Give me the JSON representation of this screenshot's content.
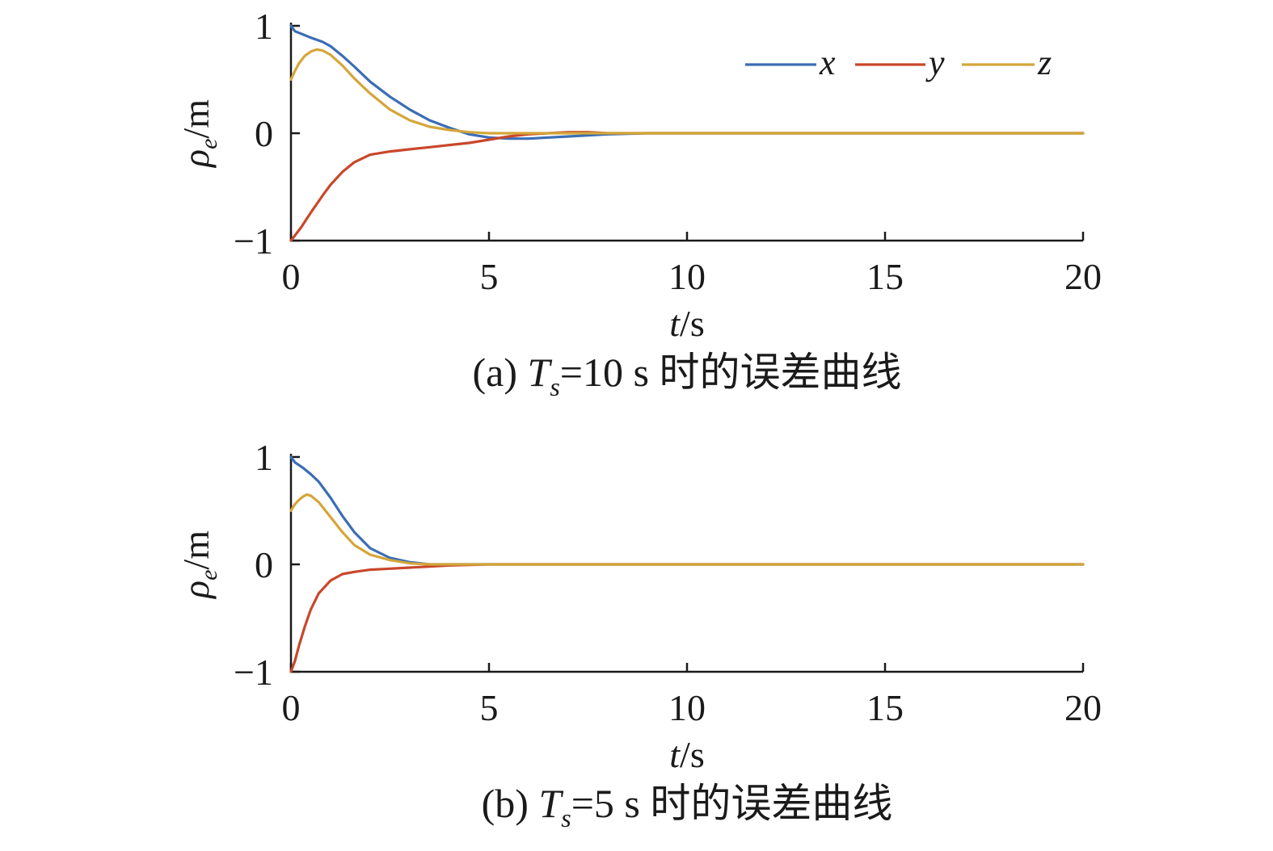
{
  "chart_data": [
    {
      "type": "line",
      "panel_label": "(a)",
      "caption": {
        "prefix": "(a) ",
        "var_main": "T",
        "var_sub": "s",
        "suffix": "=10 s 时的误差曲线"
      },
      "xlabel": {
        "italic": "t",
        "rest": "/s"
      },
      "ylabel": {
        "main": "ρ",
        "sub": "e",
        "rest": "/m"
      },
      "xlim": [
        0,
        20
      ],
      "ylim": [
        -1,
        1
      ],
      "xticks": [
        0,
        5,
        10,
        15,
        20
      ],
      "xtick_labels": [
        "0",
        "5",
        "10",
        "15",
        "20"
      ],
      "yticks": [
        -1,
        0,
        1
      ],
      "ytick_labels": [
        "−1",
        "0",
        "1"
      ],
      "grid": false,
      "legend": {
        "placement": "top-right",
        "show": true
      },
      "series": [
        {
          "name": "x",
          "color": "#3b6db5",
          "x": [
            0,
            0.1,
            0.3,
            0.5,
            0.8,
            1.0,
            1.3,
            1.6,
            2.0,
            2.5,
            3.0,
            3.5,
            4.0,
            4.5,
            5.0,
            5.5,
            6.0,
            6.5,
            7.0,
            7.5,
            8.0,
            9.0,
            10.0,
            12.0,
            15.0,
            20.0
          ],
          "y": [
            1.0,
            0.95,
            0.92,
            0.89,
            0.85,
            0.81,
            0.72,
            0.62,
            0.48,
            0.34,
            0.22,
            0.12,
            0.05,
            -0.01,
            -0.04,
            -0.05,
            -0.05,
            -0.04,
            -0.03,
            -0.02,
            -0.01,
            0.0,
            0.0,
            0.0,
            0.0,
            0.0
          ]
        },
        {
          "name": "y",
          "color": "#c9472b",
          "x": [
            0,
            0.25,
            0.5,
            0.8,
            1.0,
            1.3,
            1.6,
            2.0,
            2.5,
            3.0,
            3.5,
            4.0,
            4.5,
            5.0,
            5.5,
            6.0,
            6.5,
            7.0,
            7.5,
            8.0,
            9.0,
            10.0,
            12.0,
            15.0,
            20.0
          ],
          "y": [
            -1.0,
            -0.88,
            -0.74,
            -0.58,
            -0.48,
            -0.36,
            -0.27,
            -0.2,
            -0.17,
            -0.15,
            -0.13,
            -0.11,
            -0.09,
            -0.06,
            -0.03,
            -0.01,
            0.0,
            0.01,
            0.01,
            0.0,
            0.0,
            0.0,
            0.0,
            0.0,
            0.0
          ]
        },
        {
          "name": "z",
          "color": "#d4a63a",
          "x": [
            0,
            0.1,
            0.2,
            0.35,
            0.5,
            0.65,
            0.8,
            1.0,
            1.3,
            1.6,
            2.0,
            2.5,
            3.0,
            3.5,
            4.0,
            4.5,
            5.0,
            5.5,
            6.0,
            7.0,
            8.0,
            10.0,
            12.0,
            15.0,
            20.0
          ],
          "y": [
            0.5,
            0.58,
            0.65,
            0.72,
            0.76,
            0.78,
            0.77,
            0.73,
            0.63,
            0.51,
            0.37,
            0.22,
            0.12,
            0.06,
            0.03,
            0.01,
            0.0,
            0.0,
            0.0,
            0.0,
            0.0,
            0.0,
            0.0,
            0.0,
            0.0
          ]
        }
      ]
    },
    {
      "type": "line",
      "panel_label": "(b)",
      "caption": {
        "prefix": "(b) ",
        "var_main": "T",
        "var_sub": "s",
        "suffix": "=5 s 时的误差曲线"
      },
      "xlabel": {
        "italic": "t",
        "rest": "/s"
      },
      "ylabel": {
        "main": "ρ",
        "sub": "e",
        "rest": "/m"
      },
      "xlim": [
        0,
        20
      ],
      "ylim": [
        -1,
        1
      ],
      "xticks": [
        0,
        5,
        10,
        15,
        20
      ],
      "xtick_labels": [
        "0",
        "5",
        "10",
        "15",
        "20"
      ],
      "yticks": [
        -1,
        0,
        1
      ],
      "ytick_labels": [
        "−1",
        "0",
        "1"
      ],
      "grid": false,
      "legend": {
        "placement": "none",
        "show": false
      },
      "series": [
        {
          "name": "x",
          "color": "#3b6db5",
          "x": [
            0,
            0.1,
            0.3,
            0.5,
            0.7,
            1.0,
            1.3,
            1.6,
            2.0,
            2.5,
            3.0,
            3.5,
            4.0,
            5.0,
            6.0,
            8.0,
            10.0,
            15.0,
            20.0
          ],
          "y": [
            1.0,
            0.95,
            0.9,
            0.84,
            0.77,
            0.62,
            0.45,
            0.3,
            0.15,
            0.06,
            0.02,
            0.0,
            0.0,
            0.0,
            0.0,
            0.0,
            0.0,
            0.0,
            0.0
          ]
        },
        {
          "name": "y",
          "color": "#c9472b",
          "x": [
            0,
            0.1,
            0.2,
            0.35,
            0.5,
            0.7,
            1.0,
            1.3,
            1.6,
            2.0,
            2.5,
            3.0,
            3.5,
            4.0,
            5.0,
            6.0,
            8.0,
            10.0,
            15.0,
            20.0
          ],
          "y": [
            -1.0,
            -0.9,
            -0.76,
            -0.58,
            -0.42,
            -0.27,
            -0.15,
            -0.09,
            -0.07,
            -0.05,
            -0.04,
            -0.03,
            -0.02,
            -0.01,
            0.0,
            0.0,
            0.0,
            0.0,
            0.0,
            0.0
          ]
        },
        {
          "name": "z",
          "color": "#d4a63a",
          "x": [
            0,
            0.1,
            0.2,
            0.3,
            0.4,
            0.5,
            0.7,
            1.0,
            1.3,
            1.6,
            2.0,
            2.5,
            3.0,
            3.5,
            4.0,
            5.0,
            6.0,
            8.0,
            10.0,
            15.0,
            20.0
          ],
          "y": [
            0.5,
            0.56,
            0.6,
            0.63,
            0.65,
            0.64,
            0.58,
            0.44,
            0.3,
            0.18,
            0.09,
            0.04,
            0.01,
            0.0,
            0.0,
            0.0,
            0.0,
            0.0,
            0.0,
            0.0,
            0.0
          ]
        }
      ]
    }
  ]
}
